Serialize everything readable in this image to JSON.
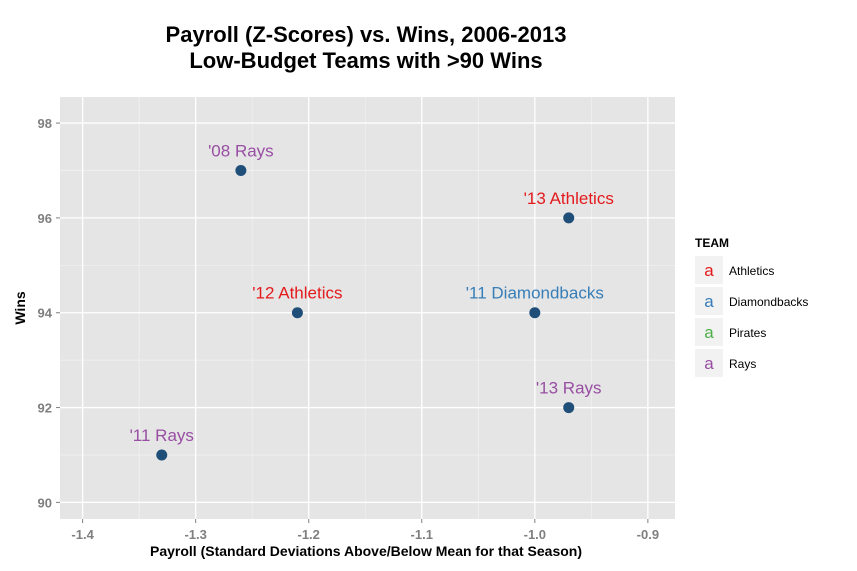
{
  "chart_data": {
    "type": "scatter",
    "title": "Payroll (Z-Scores) vs. Wins, 2006-2013",
    "subtitle": "Low-Budget Teams with >90 Wins",
    "xlabel": "Payroll (Standard Deviations Above/Below Mean for that Season)",
    "ylabel": "Wins",
    "xlim": [
      -1.42,
      -0.876
    ],
    "ylim": [
      89.65,
      98.55
    ],
    "x_ticks": [
      -1.4,
      -1.3,
      -1.2,
      -1.1,
      -1.0,
      -0.9
    ],
    "x_tick_labels": [
      "-1.4",
      "-1.3",
      "-1.2",
      "-1.1",
      "-1.0",
      "-0.9"
    ],
    "y_ticks": [
      90,
      92,
      94,
      96,
      98
    ],
    "y_tick_labels": [
      "90",
      "92",
      "94",
      "96",
      "98"
    ],
    "grid": true,
    "point_color": "#1f4e79",
    "points": [
      {
        "x": -1.26,
        "y": 97,
        "label": "'08 Rays",
        "team": "Rays"
      },
      {
        "x": -0.97,
        "y": 96,
        "label": "'13 Athletics",
        "team": "Athletics"
      },
      {
        "x": -1.21,
        "y": 94,
        "label": "'12 Athletics",
        "team": "Athletics"
      },
      {
        "x": -1.0,
        "y": 94,
        "label": "'11 Diamondbacks",
        "team": "Diamondbacks"
      },
      {
        "x": -0.97,
        "y": 92,
        "label": "'13 Rays",
        "team": "Rays"
      },
      {
        "x": -1.33,
        "y": 91,
        "label": "'11 Rays",
        "team": "Rays"
      }
    ],
    "legend": {
      "title": "TEAM",
      "placement": "right",
      "key_glyph": "a",
      "entries": [
        {
          "name": "Athletics",
          "color": "#e41a1c"
        },
        {
          "name": "Diamondbacks",
          "color": "#377eb8"
        },
        {
          "name": "Pirates",
          "color": "#4daf4a"
        },
        {
          "name": "Rays",
          "color": "#984ea3"
        }
      ]
    }
  }
}
